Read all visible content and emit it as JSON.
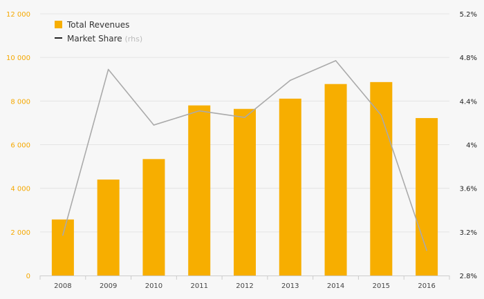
{
  "chart_data": {
    "type": "bar",
    "categories": [
      "2008",
      "2009",
      "2010",
      "2011",
      "2012",
      "2013",
      "2014",
      "2015",
      "2016"
    ],
    "series": [
      {
        "name": "Total Revenues",
        "type": "bar",
        "axis": "left",
        "values": [
          2570,
          4400,
          5340,
          7800,
          7640,
          8110,
          8780,
          8870,
          7220
        ]
      },
      {
        "name": "Market Share",
        "name_suffix": "(rhs)",
        "type": "line",
        "axis": "right",
        "values": [
          3.17,
          4.69,
          4.18,
          4.31,
          4.25,
          4.59,
          4.77,
          4.27,
          3.03
        ]
      }
    ],
    "left_axis": {
      "ylim": [
        0,
        12000
      ],
      "ticks": [
        0,
        2000,
        4000,
        6000,
        8000,
        10000,
        12000
      ],
      "tick_labels": [
        "0",
        "2 000",
        "4 000",
        "6 000",
        "8 000",
        "10 000",
        "12 000"
      ]
    },
    "right_axis": {
      "ylim": [
        2.8,
        5.2
      ],
      "ticks": [
        2.8,
        3.2,
        3.6,
        4.0,
        4.4,
        4.8,
        5.2
      ],
      "tick_labels": [
        "2.8%",
        "3.2%",
        "3.6%",
        "4%",
        "4.4%",
        "4.8%",
        "5.2%"
      ]
    },
    "grid": true,
    "legend_position": "top-left",
    "colors": {
      "bar": "#f7ae00",
      "line": "#aaaaaa",
      "legend_line": "#222222",
      "grid": "#e4e4e4",
      "left_ticks": "#f5a800",
      "right_ticks": "#222222"
    }
  }
}
